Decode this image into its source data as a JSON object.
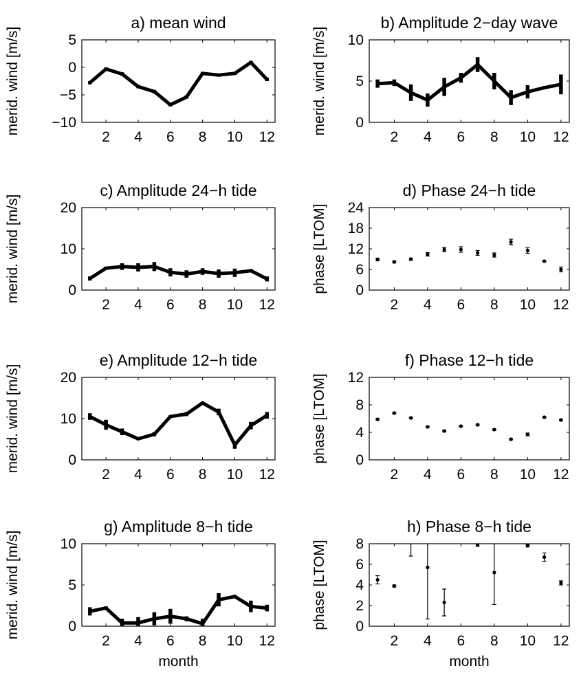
{
  "chart_data": [
    {
      "type": "line",
      "title": "a) mean wind",
      "xlabel": "",
      "ylabel": "merid. wind [m/s]",
      "x": [
        1,
        2,
        3,
        4,
        5,
        6,
        7,
        8,
        9,
        10,
        11,
        12
      ],
      "y": [
        -2.8,
        -0.3,
        -1.2,
        -3.5,
        -4.4,
        -6.8,
        -5.4,
        -1.1,
        -1.4,
        -1.1,
        0.9,
        -2.2
      ],
      "err": [
        0.3,
        0.3,
        0.3,
        0.3,
        0.3,
        0.3,
        0.3,
        0.3,
        0.3,
        0.3,
        0.3,
        0.3
      ],
      "xlim": [
        0.5,
        12.5
      ],
      "ylim": [
        -10,
        5
      ],
      "xticks": [
        2,
        4,
        6,
        8,
        10,
        12
      ],
      "yticks": [
        -10,
        -5,
        0,
        5
      ],
      "xticklabels": [
        "2",
        "4",
        "6",
        "8",
        "10",
        "12"
      ],
      "yticklabels": [
        "−10",
        "−5",
        "0",
        "5"
      ],
      "style": "thick"
    },
    {
      "type": "line",
      "title": "b) Amplitude 2−day wave",
      "xlabel": "",
      "ylabel": "merid. wind [m/s]",
      "x": [
        1,
        2,
        3,
        4,
        5,
        6,
        7,
        8,
        9,
        10,
        11,
        12
      ],
      "y": [
        4.7,
        4.8,
        3.6,
        2.7,
        4.3,
        5.4,
        7.0,
        5.0,
        3.0,
        3.7,
        4.2,
        4.6
      ],
      "err": [
        0.5,
        0.4,
        1.0,
        0.8,
        1.1,
        0.6,
        0.9,
        1.0,
        0.9,
        0.8,
        0.2,
        1.2
      ],
      "xlim": [
        0.5,
        12.5
      ],
      "ylim": [
        0,
        10
      ],
      "xticks": [
        2,
        4,
        6,
        8,
        10,
        12
      ],
      "yticks": [
        0,
        5,
        10
      ],
      "xticklabels": [
        "2",
        "4",
        "6",
        "8",
        "10",
        "12"
      ],
      "yticklabels": [
        "0",
        "5",
        "10"
      ],
      "style": "thick"
    },
    {
      "type": "line",
      "title": "c) Amplitude 24−h tide",
      "xlabel": "",
      "ylabel": "merid. wind [m/s]",
      "x": [
        1,
        2,
        3,
        4,
        5,
        6,
        7,
        8,
        9,
        10,
        11,
        12
      ],
      "y": [
        2.8,
        5.3,
        5.7,
        5.5,
        5.7,
        4.3,
        3.9,
        4.5,
        4.0,
        4.2,
        4.7,
        2.7
      ],
      "err": [
        0.5,
        0.4,
        0.8,
        1.0,
        1.1,
        1.0,
        0.9,
        0.8,
        1.0,
        1.0,
        0.4,
        0.6
      ],
      "xlim": [
        0.5,
        12.5
      ],
      "ylim": [
        0,
        20
      ],
      "xticks": [
        2,
        4,
        6,
        8,
        10,
        12
      ],
      "yticks": [
        0,
        10,
        20
      ],
      "xticklabels": [
        "2",
        "4",
        "6",
        "8",
        "10",
        "12"
      ],
      "yticklabels": [
        "0",
        "10",
        "20"
      ],
      "style": "thick"
    },
    {
      "type": "scatter",
      "title": "d) Phase 24−h tide",
      "xlabel": "",
      "ylabel": "phase [LTOM]",
      "x": [
        1,
        2,
        3,
        4,
        5,
        6,
        7,
        8,
        9,
        10,
        11,
        12
      ],
      "y": [
        8.9,
        8.2,
        9.0,
        10.4,
        11.8,
        11.8,
        10.8,
        10.2,
        14.0,
        11.5,
        8.4,
        6.0
      ],
      "err": [
        0.4,
        0.3,
        0.3,
        0.5,
        0.6,
        0.8,
        0.7,
        0.6,
        0.8,
        0.8,
        0.2,
        0.7
      ],
      "xlim": [
        0.5,
        12.5
      ],
      "ylim": [
        0,
        24
      ],
      "xticks": [
        2,
        4,
        6,
        8,
        10,
        12
      ],
      "yticks": [
        0,
        6,
        12,
        18,
        24
      ],
      "xticklabels": [
        "2",
        "4",
        "6",
        "8",
        "10",
        "12"
      ],
      "yticklabels": [
        "0",
        "6",
        "12",
        "18",
        "24"
      ],
      "style": "points"
    },
    {
      "type": "line",
      "title": "e) Amplitude 12−h tide",
      "xlabel": "",
      "ylabel": "merid. wind [m/s]",
      "x": [
        1,
        2,
        3,
        4,
        5,
        6,
        7,
        8,
        9,
        10,
        11,
        12
      ],
      "y": [
        10.5,
        8.5,
        6.8,
        5.1,
        6.2,
        10.5,
        11.1,
        13.8,
        11.6,
        3.6,
        8.3,
        10.8
      ],
      "err": [
        0.8,
        1.2,
        0.8,
        0.3,
        0.5,
        0.3,
        0.5,
        0.3,
        0.8,
        0.9,
        0.9,
        0.8
      ],
      "xlim": [
        0.5,
        12.5
      ],
      "ylim": [
        0,
        20
      ],
      "xticks": [
        2,
        4,
        6,
        8,
        10,
        12
      ],
      "yticks": [
        0,
        10,
        20
      ],
      "xticklabels": [
        "2",
        "4",
        "6",
        "8",
        "10",
        "12"
      ],
      "yticklabels": [
        "0",
        "10",
        "20"
      ],
      "style": "thick"
    },
    {
      "type": "scatter",
      "title": "f) Phase 12−h tide",
      "xlabel": "",
      "ylabel": "phase [LTOM]",
      "x": [
        1,
        2,
        3,
        4,
        5,
        6,
        7,
        8,
        9,
        10,
        11,
        12
      ],
      "y": [
        5.9,
        6.8,
        6.1,
        4.8,
        4.2,
        4.9,
        5.1,
        4.4,
        3.0,
        3.7,
        6.2,
        5.8
      ],
      "err": [
        0.1,
        0.1,
        0.1,
        0.1,
        0.1,
        0.1,
        0.1,
        0.1,
        0.1,
        0.2,
        0.1,
        0.1
      ],
      "xlim": [
        0.5,
        12.5
      ],
      "ylim": [
        0,
        12
      ],
      "xticks": [
        2,
        4,
        6,
        8,
        10,
        12
      ],
      "yticks": [
        0,
        4,
        8,
        12
      ],
      "xticklabels": [
        "2",
        "4",
        "6",
        "8",
        "10",
        "12"
      ],
      "yticklabels": [
        "0",
        "4",
        "8",
        "12"
      ],
      "style": "points"
    },
    {
      "type": "line",
      "title": "g) Amplitude 8−h tide",
      "xlabel": "month",
      "ylabel": "merid. wind [m/s]",
      "x": [
        1,
        2,
        3,
        4,
        5,
        6,
        7,
        8,
        9,
        10,
        11,
        12
      ],
      "y": [
        1.8,
        2.2,
        0.4,
        0.4,
        0.9,
        1.2,
        0.9,
        0.3,
        3.2,
        3.6,
        2.4,
        2.2
      ],
      "err": [
        0.5,
        0.2,
        0.5,
        0.7,
        0.8,
        0.9,
        0.3,
        0.6,
        0.8,
        0.2,
        0.7,
        0.4
      ],
      "xlim": [
        0.5,
        12.5
      ],
      "ylim": [
        0,
        10
      ],
      "xticks": [
        2,
        4,
        6,
        8,
        10,
        12
      ],
      "yticks": [
        0,
        5,
        10
      ],
      "xticklabels": [
        "2",
        "4",
        "6",
        "8",
        "10",
        "12"
      ],
      "yticklabels": [
        "0",
        "5",
        "10"
      ],
      "style": "thick"
    },
    {
      "type": "scatter",
      "title": "h) Phase 8−h tide",
      "xlabel": "month",
      "ylabel": "phase [LTOM]",
      "x": [
        1,
        2,
        4,
        5,
        7,
        8,
        10,
        11,
        12
      ],
      "y": [
        4.5,
        3.9,
        5.7,
        2.3,
        7.9,
        5.2,
        7.8,
        6.7,
        4.2
      ],
      "err": [
        0.4,
        0.1,
        5.0,
        1.3,
        0.15,
        3.1,
        0.1,
        0.4,
        0.2
      ],
      "extra_errorbar": {
        "x": 3,
        "low": 6.8,
        "high": 8.0
      },
      "xlim": [
        0.5,
        12.5
      ],
      "ylim": [
        0,
        8
      ],
      "xticks": [
        2,
        4,
        6,
        8,
        10,
        12
      ],
      "yticks": [
        0,
        2,
        4,
        6,
        8
      ],
      "xticklabels": [
        "2",
        "4",
        "6",
        "8",
        "10",
        "12"
      ],
      "yticklabels": [
        "0",
        "2",
        "4",
        "6",
        "8"
      ],
      "style": "points"
    }
  ]
}
